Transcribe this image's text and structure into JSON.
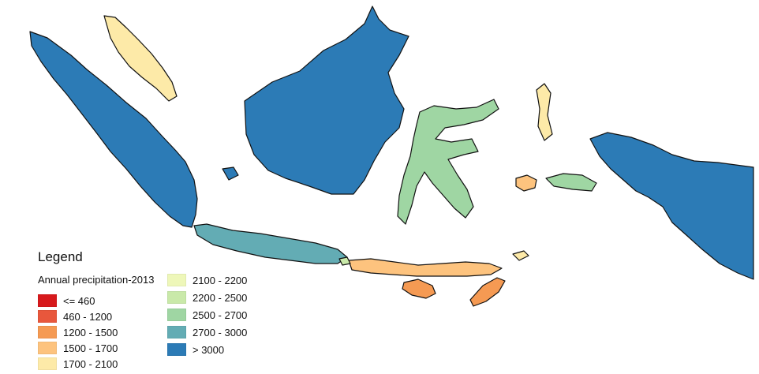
{
  "legend": {
    "title": "Legend",
    "subtitle": "Annual precipitation-2013",
    "classes": [
      {
        "label": "<= 460",
        "color": "#d7191c"
      },
      {
        "label": "460 - 1200",
        "color": "#e8573c"
      },
      {
        "label": "1200 - 1500",
        "color": "#f59a53"
      },
      {
        "label": "1500 - 1700",
        "color": "#fdc37e"
      },
      {
        "label": "1700 - 2100",
        "color": "#fdeaa8"
      },
      {
        "label": "2100 - 2200",
        "color": "#eef7b9"
      },
      {
        "label": "2200 - 2500",
        "color": "#c9e9a9"
      },
      {
        "label": "2500 - 2700",
        "color": "#9fd6a3"
      },
      {
        "label": "2700 - 3000",
        "color": "#63acb4"
      },
      {
        "label": "> 3000",
        "color": "#2c7bb6"
      }
    ]
  }
}
